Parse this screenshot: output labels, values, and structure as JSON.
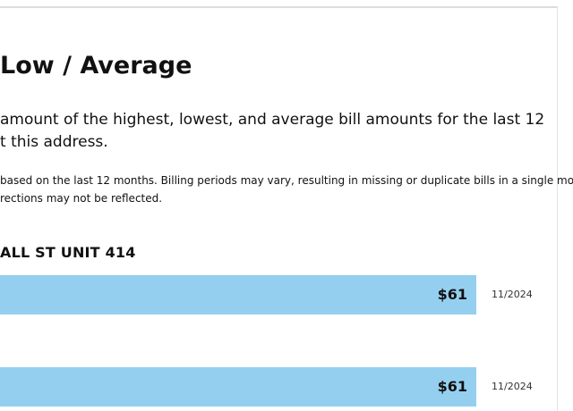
{
  "title": "Low / Average",
  "description": {
    "line1": "amount of the highest, lowest, and average bill amounts for the last 12",
    "line2": "t this address."
  },
  "note": {
    "line1": "based on the last 12 months. Billing periods may vary, resulting in missing or duplicate bills in a single mo",
    "line2": "rections may not be reflected."
  },
  "address": "ALL ST UNIT 414",
  "bars": [
    {
      "amount_label": "$61",
      "amount": 61,
      "date": "11/2024",
      "fill_fraction": 1.0
    },
    {
      "amount_label": "$61",
      "amount": 61,
      "date": "11/2024",
      "fill_fraction": 1.0
    }
  ],
  "colors": {
    "bar": "#95cfef",
    "text": "#111111"
  }
}
